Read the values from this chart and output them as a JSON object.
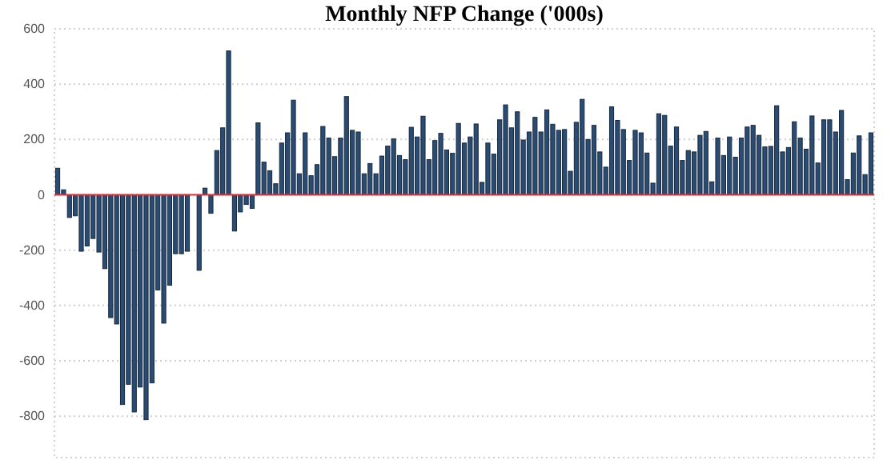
{
  "chart_data": {
    "type": "bar",
    "title": "Monthly NFP Change ('000s)",
    "categories": [
      null,
      null,
      null,
      null,
      null,
      null,
      null,
      null,
      null,
      null,
      null,
      null,
      null,
      null,
      null,
      null,
      null,
      null,
      null,
      null,
      null,
      null,
      null,
      null,
      null,
      null,
      null,
      null,
      null,
      null,
      null,
      null,
      null,
      null,
      null,
      null,
      null,
      null,
      null,
      null,
      null,
      null,
      null,
      null,
      null,
      null,
      null,
      null,
      null,
      null,
      null,
      null,
      null,
      null,
      null,
      null,
      null,
      null,
      null,
      null,
      null,
      null,
      null,
      null,
      null,
      null,
      null,
      null,
      null,
      null,
      null,
      null,
      null,
      null,
      null,
      null,
      null,
      null,
      null,
      null,
      null,
      null,
      null,
      null,
      null,
      null,
      null,
      null,
      null,
      null,
      null,
      null,
      null,
      null,
      null,
      null,
      null,
      null,
      null,
      null,
      null,
      null,
      null,
      null,
      null,
      null,
      null,
      null,
      null,
      null,
      null,
      null,
      null,
      null,
      null,
      null,
      null,
      null,
      null,
      null,
      null,
      null,
      null,
      null,
      null,
      null,
      null,
      null,
      null,
      null,
      null,
      null,
      null,
      null,
      null,
      null,
      null,
      null,
      null
    ],
    "values": [
      96,
      18,
      -82,
      -76,
      -204,
      -185,
      -158,
      -207,
      -267,
      -444,
      -467,
      -758,
      -685,
      -785,
      -695,
      -813,
      -680,
      -344,
      -464,
      -327,
      -213,
      -213,
      -204,
      null,
      -273,
      24,
      -67,
      160,
      242,
      520,
      -131,
      -62,
      -35,
      -49,
      260,
      118,
      87,
      40,
      187,
      224,
      342,
      76,
      224,
      69,
      109,
      247,
      205,
      138,
      205,
      355,
      233,
      227,
      76,
      113,
      76,
      140,
      176,
      202,
      142,
      127,
      244,
      209,
      284,
      127,
      196,
      222,
      162,
      150,
      258,
      187,
      209,
      256,
      45,
      187,
      147,
      271,
      325,
      242,
      300,
      198,
      227,
      280,
      227,
      307,
      255,
      233,
      236,
      85,
      262,
      345,
      200,
      251,
      155,
      100,
      318,
      269,
      236,
      124,
      233,
      224,
      151,
      42,
      293,
      287,
      176,
      245,
      124,
      160,
      155,
      215,
      229,
      47,
      205,
      142,
      209,
      136,
      205,
      245,
      251,
      215,
      173,
      175,
      322,
      155,
      171,
      264,
      205,
      165,
      285,
      115,
      271,
      271,
      227,
      305,
      55,
      151,
      213,
      73,
      224
    ],
    "color": "#2b4c72",
    "ylim": [
      -950,
      600
    ],
    "yticks": [
      -800,
      -600,
      -400,
      -200,
      0,
      200,
      400,
      600
    ],
    "grid": "y",
    "ref_lines": [
      {
        "axis": "y",
        "value": 0,
        "color": "#e0303a"
      }
    ]
  }
}
